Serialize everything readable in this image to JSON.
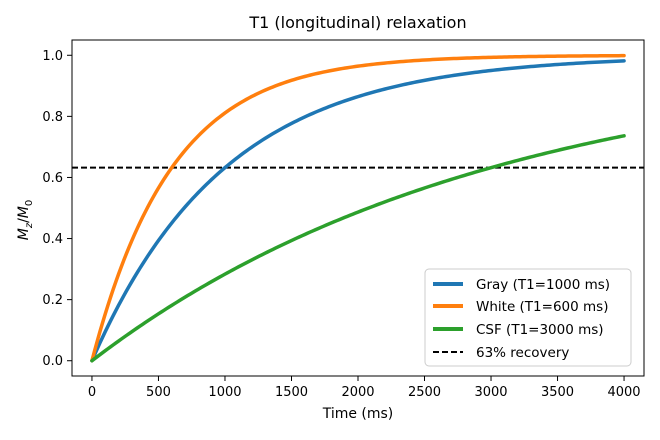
{
  "chart_data": {
    "type": "line",
    "title": "T1 (longitudinal) relaxation",
    "xlabel": "Time (ms)",
    "ylabel_main": "M",
    "ylabel_main_sub": "z",
    "ylabel_sep": "/",
    "ylabel_den": "M",
    "ylabel_den_sub": "0",
    "xlim": [
      -150,
      4150
    ],
    "ylim": [
      -0.05,
      1.05
    ],
    "x_ticks": [
      0,
      500,
      1000,
      1500,
      2000,
      2500,
      3000,
      3500,
      4000
    ],
    "y_ticks": [
      0.0,
      0.2,
      0.4,
      0.6,
      0.8,
      1.0
    ],
    "y_tick_labels": [
      "0.0",
      "0.2",
      "0.4",
      "0.6",
      "0.8",
      "1.0"
    ],
    "grid": false,
    "legend_position": "lower-right",
    "series": [
      {
        "name": "Gray (T1=1000 ms)",
        "t1": 1000,
        "color": "#1f77b4",
        "x_range": [
          0,
          4000
        ]
      },
      {
        "name": "White (T1=600 ms)",
        "t1": 600,
        "color": "#ff7f0e",
        "x_range": [
          0,
          4000
        ]
      },
      {
        "name": "CSF (T1=3000 ms)",
        "t1": 3000,
        "color": "#2ca02c",
        "x_range": [
          0,
          4000
        ]
      }
    ],
    "reference_line": {
      "name": "63% recovery",
      "y": 0.632,
      "color": "#000000",
      "style": "dashed"
    }
  }
}
